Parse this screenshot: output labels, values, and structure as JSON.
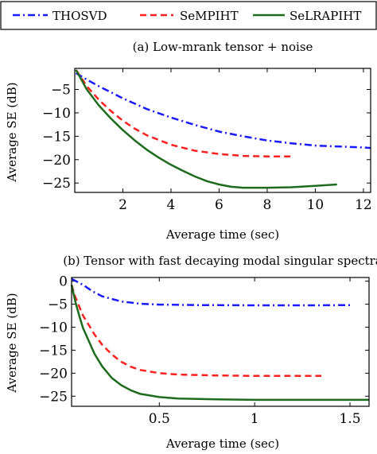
{
  "legend": {
    "entries": [
      {
        "name": "THOSVD",
        "color": "#1a1aff",
        "dash": "dash-dot"
      },
      {
        "name": "SeMPIHT",
        "color": "#ff2020",
        "dash": "dashed"
      },
      {
        "name": "SeLRAPIHT",
        "color": "#1e6b1e",
        "dash": "solid"
      }
    ]
  },
  "chart_data": [
    {
      "type": "line",
      "caption": "(a) Low-mrank tensor + noise",
      "xlabel": "Average time (sec)",
      "ylabel": "Average SE (dB)",
      "xlim": [
        0,
        12.3
      ],
      "ylim": [
        -27,
        -0.5
      ],
      "xticks": [
        2,
        4,
        6,
        8,
        10,
        12
      ],
      "yticks": [
        -5,
        -10,
        -15,
        -20,
        -25
      ],
      "series": [
        {
          "name": "THOSVD",
          "color": "#1a1aff",
          "x": [
            0.05,
            0.5,
            1,
            1.5,
            2,
            3,
            4,
            5,
            6,
            7,
            8,
            9,
            10,
            11,
            12,
            12.3
          ],
          "y": [
            -1.5,
            -2.9,
            -4.3,
            -5.6,
            -6.9,
            -9.2,
            -11.0,
            -12.6,
            -14.0,
            -15.0,
            -15.9,
            -16.5,
            -17.0,
            -17.2,
            -17.4,
            -17.5
          ]
        },
        {
          "name": "SeMPIHT",
          "color": "#ff2020",
          "x": [
            0.05,
            0.5,
            1,
            1.5,
            2,
            2.5,
            3,
            4,
            5,
            6,
            7,
            8,
            9
          ],
          "y": [
            -0.8,
            -4.3,
            -7.2,
            -9.6,
            -11.7,
            -13.4,
            -14.8,
            -16.8,
            -18.1,
            -18.8,
            -19.2,
            -19.3,
            -19.3
          ]
        },
        {
          "name": "SeLRAPIHT",
          "color": "#1e6b1e",
          "x": [
            0.05,
            0.5,
            1,
            1.5,
            2,
            2.5,
            3,
            3.5,
            4,
            4.5,
            5,
            5.5,
            6,
            6.5,
            7,
            8,
            9,
            10,
            10.9
          ],
          "y": [
            -0.8,
            -5.0,
            -8.4,
            -11.2,
            -13.7,
            -15.9,
            -17.9,
            -19.6,
            -21.1,
            -22.4,
            -23.6,
            -24.6,
            -25.3,
            -25.8,
            -26.0,
            -26.0,
            -25.9,
            -25.6,
            -25.3
          ]
        }
      ]
    },
    {
      "type": "line",
      "caption": "(b) Tensor with fast decaying modal singular spectra",
      "xlabel": "Average time (sec)",
      "ylabel": "Average SE (dB)",
      "xlim": [
        0.04,
        1.6
      ],
      "ylim": [
        -27.2,
        0.8
      ],
      "xticks": [
        0.5,
        1,
        1.5
      ],
      "yticks": [
        0,
        -5,
        -10,
        -15,
        -20,
        -25
      ],
      "series": [
        {
          "name": "THOSVD",
          "color": "#1a1aff",
          "x": [
            0.04,
            0.1,
            0.15,
            0.2,
            0.3,
            0.4,
            0.5,
            0.7,
            1.0,
            1.3,
            1.5
          ],
          "y": [
            0.5,
            -0.8,
            -2.2,
            -3.3,
            -4.4,
            -4.9,
            -5.1,
            -5.2,
            -5.25,
            -5.25,
            -5.2
          ]
        },
        {
          "name": "SeMPIHT",
          "color": "#ff2020",
          "x": [
            0.04,
            0.06,
            0.08,
            0.1,
            0.13,
            0.16,
            0.2,
            0.25,
            0.3,
            0.35,
            0.4,
            0.5,
            0.6,
            0.8,
            1.0,
            1.2,
            1.35
          ],
          "y": [
            -0.8,
            -3.5,
            -5.5,
            -7.5,
            -9.5,
            -11.6,
            -13.8,
            -15.9,
            -17.5,
            -18.6,
            -19.3,
            -20.0,
            -20.3,
            -20.5,
            -20.6,
            -20.6,
            -20.6
          ]
        },
        {
          "name": "SeLRAPIHT",
          "color": "#1e6b1e",
          "x": [
            0.04,
            0.06,
            0.08,
            0.1,
            0.13,
            0.16,
            0.2,
            0.25,
            0.3,
            0.35,
            0.4,
            0.5,
            0.6,
            0.8,
            1.0,
            1.2,
            1.4,
            1.6
          ],
          "y": [
            -0.8,
            -4.5,
            -7.5,
            -10.2,
            -13.0,
            -15.8,
            -18.5,
            -21.0,
            -22.6,
            -23.7,
            -24.5,
            -25.2,
            -25.5,
            -25.7,
            -25.8,
            -25.8,
            -25.8,
            -25.8
          ]
        }
      ]
    }
  ]
}
